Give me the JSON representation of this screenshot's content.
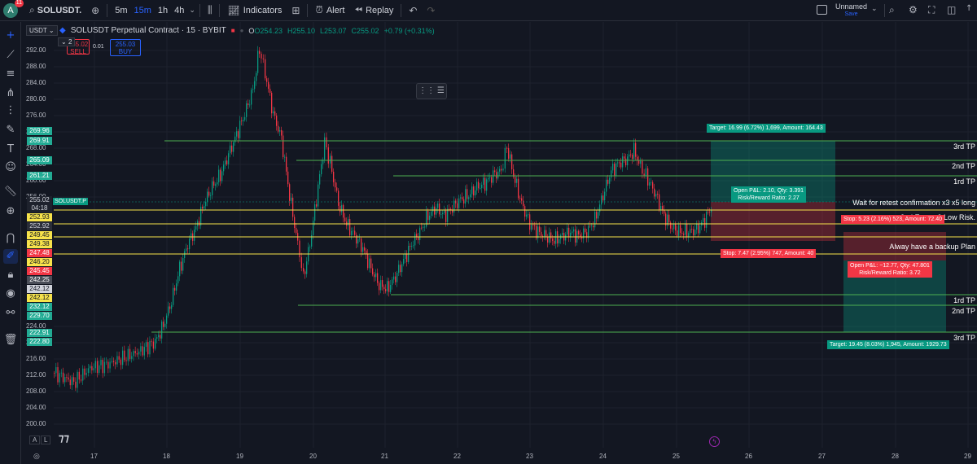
{
  "topbar": {
    "avatar_letter": "A",
    "avatar_badge": "11",
    "symbol": "SOLUSDT.",
    "timeframes": [
      "5m",
      "15m",
      "1h",
      "4h"
    ],
    "active_timeframe": "15m",
    "indicators_label": "Indicators",
    "alert_label": "Alert",
    "replay_label": "Replay",
    "layout_name": "Unnamed",
    "layout_status": "Save"
  },
  "legend": {
    "title": "SOLUSDT Perpetual Contract · 15 · BYBIT",
    "open": "O254.23",
    "high": "H255.10",
    "low": "L253.07",
    "close": "C255.02",
    "change": "+0.79 (+0.31%)",
    "currency": "USDT",
    "sell_price": "255.02",
    "sell_label": "SELL",
    "buy_price": "255.03",
    "buy_label": "BUY",
    "qty": "0.01",
    "collapse_count": "2"
  },
  "yaxis": [
    "292.00",
    "288.00",
    "284.00",
    "280.00",
    "276.00",
    "272.00",
    "268.00",
    "264.00",
    "260.00",
    "256.00",
    "224.00",
    "220.00",
    "216.00",
    "212.00",
    "208.00",
    "204.00",
    "200.00"
  ],
  "xaxis": [
    "17",
    "18",
    "19",
    "20",
    "21",
    "22",
    "23",
    "24",
    "25",
    "26",
    "27",
    "28",
    "29"
  ],
  "price_tags": [
    {
      "label": "269.96",
      "color": "#22ab94",
      "text": "#ffffff"
    },
    {
      "label": "269.91",
      "color": "#22ab94",
      "text": "#ffffff"
    },
    {
      "label": "265.09",
      "color": "#22ab94",
      "text": "#ffffff"
    },
    {
      "label": "261.21",
      "color": "#22ab94",
      "text": "#ffffff"
    },
    {
      "label": "255.02",
      "color": "#1e222d",
      "text": "#d1d4dc"
    },
    {
      "label": "04:18",
      "color": "#1e222d",
      "text": "#d1d4dc"
    },
    {
      "label": "252.93",
      "color": "#f7e34b",
      "text": "#131722"
    },
    {
      "label": "252.92",
      "color": "#2a2e39",
      "text": "#d1d4dc"
    },
    {
      "label": "249.45",
      "color": "#f7e34b",
      "text": "#131722"
    },
    {
      "label": "249.38",
      "color": "#f7e34b",
      "text": "#131722"
    },
    {
      "label": "247.48",
      "color": "#f23645",
      "text": "#ffffff"
    },
    {
      "label": "246.20",
      "color": "#f7e34b",
      "text": "#131722"
    },
    {
      "label": "245.45",
      "color": "#f23645",
      "text": "#ffffff"
    },
    {
      "label": "242.25",
      "color": "#4a4e58",
      "text": "#ffffff"
    },
    {
      "label": "242.12",
      "color": "#d1d4dc",
      "text": "#131722"
    },
    {
      "label": "242.12",
      "color": "#f7e34b",
      "text": "#131722"
    },
    {
      "label": "232.12",
      "color": "#22ab94",
      "text": "#ffffff"
    },
    {
      "label": "229.70",
      "color": "#22ab94",
      "text": "#ffffff"
    },
    {
      "label": "222.91",
      "color": "#22ab94",
      "text": "#ffffff"
    },
    {
      "label": "222.80",
      "color": "#22ab94",
      "text": "#ffffff"
    }
  ],
  "symbol_tag": "SOLUSDT.P",
  "lines": {
    "tp3_upper": "3rd TP",
    "tp2_upper": "2nd TP",
    "tp1_upper": "1rd  TP",
    "wait": "Wait for retest confirmation x3 x5 long",
    "low_risk": "2nd Entry x3 Low Risk.",
    "backup": "Alway have a backup Plan",
    "tp1_lower": "1rd  TP",
    "tp2_lower": "2nd TP",
    "tp3_lower": "3rd TP"
  },
  "orders": {
    "long_target": "Target: 16.99 (6.72%) 1,699, Amount: 164.43",
    "long_pl": "Open P&L: 2.10, Qty: 3.391",
    "long_rr": "Risk/Reward Ratio: 2.27",
    "long_stop": "Stop: 5.23 (2.16%) 523, Amount: 72.40",
    "short_stop": "Stop: 7.47 (2.95%) 747, Amount: 40",
    "short_pl": "Open P&L: −12.77, Qty: 47.801",
    "short_rr": "Risk/Reward Ratio: 3.72",
    "short_target": "Target: 19.45 (8.03%) 1,945, Amount: 1929.73"
  },
  "bottom": {
    "a": "A",
    "l": "L"
  }
}
